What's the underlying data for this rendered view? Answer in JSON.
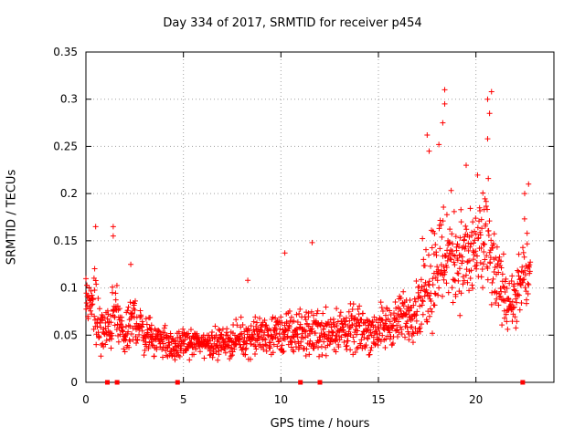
{
  "chart_data": {
    "type": "scatter",
    "title": "Day 334 of 2017, SRMTID for receiver p454",
    "xlabel": "GPS time / hours",
    "ylabel": "SRMTID / TECUs",
    "xlim": [
      0,
      24
    ],
    "ylim": [
      0,
      0.35
    ],
    "xticks": [
      "0",
      "5",
      "10",
      "15",
      "20"
    ],
    "xtick_values": [
      0,
      5,
      10,
      15,
      20
    ],
    "yticks": [
      "0",
      "0.05",
      "0.1",
      "0.15",
      "0.2",
      "0.25",
      "0.3",
      "0.35"
    ],
    "ytick_values": [
      0,
      0.05,
      0.1,
      0.15,
      0.2,
      0.25,
      0.3,
      0.35
    ],
    "grid": true,
    "marker": "+",
    "color": "#ff0000",
    "envelope": [
      {
        "t": 0.0,
        "base": 0.085,
        "spread": 0.045
      },
      {
        "t": 0.5,
        "base": 0.07,
        "spread": 0.06
      },
      {
        "t": 1.0,
        "base": 0.05,
        "spread": 0.035
      },
      {
        "t": 1.5,
        "base": 0.075,
        "spread": 0.05
      },
      {
        "t": 2.0,
        "base": 0.045,
        "spread": 0.03
      },
      {
        "t": 2.5,
        "base": 0.07,
        "spread": 0.04
      },
      {
        "t": 3.0,
        "base": 0.05,
        "spread": 0.03
      },
      {
        "t": 4.0,
        "base": 0.045,
        "spread": 0.025
      },
      {
        "t": 4.5,
        "base": 0.035,
        "spread": 0.02
      },
      {
        "t": 5.0,
        "base": 0.042,
        "spread": 0.02
      },
      {
        "t": 7.0,
        "base": 0.042,
        "spread": 0.022
      },
      {
        "t": 9.0,
        "base": 0.05,
        "spread": 0.03
      },
      {
        "t": 11.0,
        "base": 0.052,
        "spread": 0.035
      },
      {
        "t": 13.0,
        "base": 0.055,
        "spread": 0.035
      },
      {
        "t": 15.0,
        "base": 0.055,
        "spread": 0.035
      },
      {
        "t": 16.0,
        "base": 0.065,
        "spread": 0.035
      },
      {
        "t": 17.0,
        "base": 0.08,
        "spread": 0.045
      },
      {
        "t": 17.5,
        "base": 0.11,
        "spread": 0.08
      },
      {
        "t": 18.5,
        "base": 0.14,
        "spread": 0.09
      },
      {
        "t": 19.5,
        "base": 0.13,
        "spread": 0.07
      },
      {
        "t": 20.5,
        "base": 0.15,
        "spread": 0.1
      },
      {
        "t": 21.0,
        "base": 0.11,
        "spread": 0.06
      },
      {
        "t": 22.0,
        "base": 0.08,
        "spread": 0.04
      },
      {
        "t": 22.5,
        "base": 0.12,
        "spread": 0.07
      },
      {
        "t": 22.8,
        "base": 0.11,
        "spread": 0.06
      }
    ],
    "peaks": [
      {
        "x": 0.5,
        "y": 0.165
      },
      {
        "x": 1.4,
        "y": 0.165
      },
      {
        "x": 1.4,
        "y": 0.155
      },
      {
        "x": 2.3,
        "y": 0.125
      },
      {
        "x": 8.3,
        "y": 0.108
      },
      {
        "x": 10.2,
        "y": 0.137
      },
      {
        "x": 11.6,
        "y": 0.148
      },
      {
        "x": 17.5,
        "y": 0.262
      },
      {
        "x": 17.6,
        "y": 0.245
      },
      {
        "x": 18.1,
        "y": 0.252
      },
      {
        "x": 18.4,
        "y": 0.31
      },
      {
        "x": 18.4,
        "y": 0.295
      },
      {
        "x": 18.3,
        "y": 0.275
      },
      {
        "x": 19.5,
        "y": 0.23
      },
      {
        "x": 20.6,
        "y": 0.3
      },
      {
        "x": 20.8,
        "y": 0.308
      },
      {
        "x": 20.7,
        "y": 0.285
      },
      {
        "x": 20.6,
        "y": 0.258
      },
      {
        "x": 22.7,
        "y": 0.21
      },
      {
        "x": 22.5,
        "y": 0.2
      }
    ],
    "gap_markers": [
      1.1,
      1.6,
      4.7,
      11.0,
      12.0,
      22.4
    ]
  }
}
